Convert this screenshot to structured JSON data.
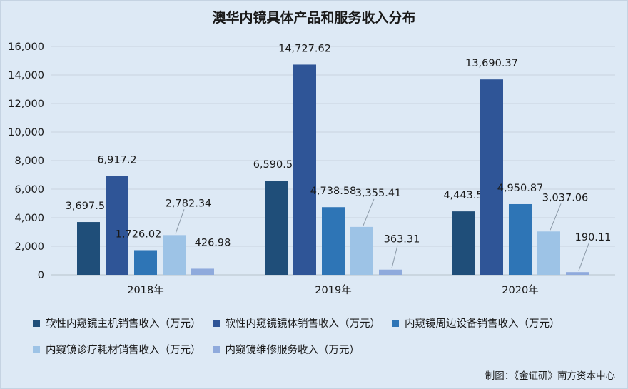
{
  "chart_data": {
    "type": "bar",
    "title": "澳华内镜具体产品和服务收入分布",
    "categories": [
      "2018年",
      "2019年",
      "2020年"
    ],
    "ylim": [
      0,
      16000
    ],
    "yticks": [
      "0",
      "2,000",
      "4,000",
      "6,000",
      "8,000",
      "10,000",
      "12,000",
      "14,000",
      "16,000"
    ],
    "ytick_values": [
      0,
      2000,
      4000,
      6000,
      8000,
      10000,
      12000,
      14000,
      16000
    ],
    "grid": true,
    "legend_position": "bottom",
    "series": [
      {
        "name": "软性内窥镜主机销售收入（万元）",
        "color": "#1f4e79",
        "values": [
          3697.57,
          6590.54,
          4443.5
        ],
        "labels": [
          "3,697.57",
          "6,590.54",
          "4,443.5"
        ]
      },
      {
        "name": "软性内窥镜镜体销售收入（万元）",
        "color": "#2f5597",
        "values": [
          6917.2,
          14727.62,
          13690.37
        ],
        "labels": [
          "6,917.2",
          "14,727.62",
          "13,690.37"
        ]
      },
      {
        "name": "内窥镜周边设备销售收入（万元）",
        "color": "#2e75b6",
        "values": [
          1726.02,
          4738.58,
          4950.87
        ],
        "labels": [
          "1,726.02",
          "4,738.58",
          "4,950.87"
        ]
      },
      {
        "name": "内窥镜诊疗耗材销售收入（万元）",
        "color": "#9dc3e6",
        "values": [
          2782.34,
          3355.41,
          3037.06
        ],
        "labels": [
          "2,782.34",
          "3,355.41",
          "3,037.06"
        ]
      },
      {
        "name": "内窥镜维修服务收入（万元）",
        "color": "#8faadc",
        "values": [
          426.98,
          363.31,
          190.11
        ],
        "labels": [
          "426.98",
          "363.31",
          "190.11"
        ]
      }
    ]
  },
  "footer": {
    "credit": "制图：《金证研》南方资本中心"
  }
}
